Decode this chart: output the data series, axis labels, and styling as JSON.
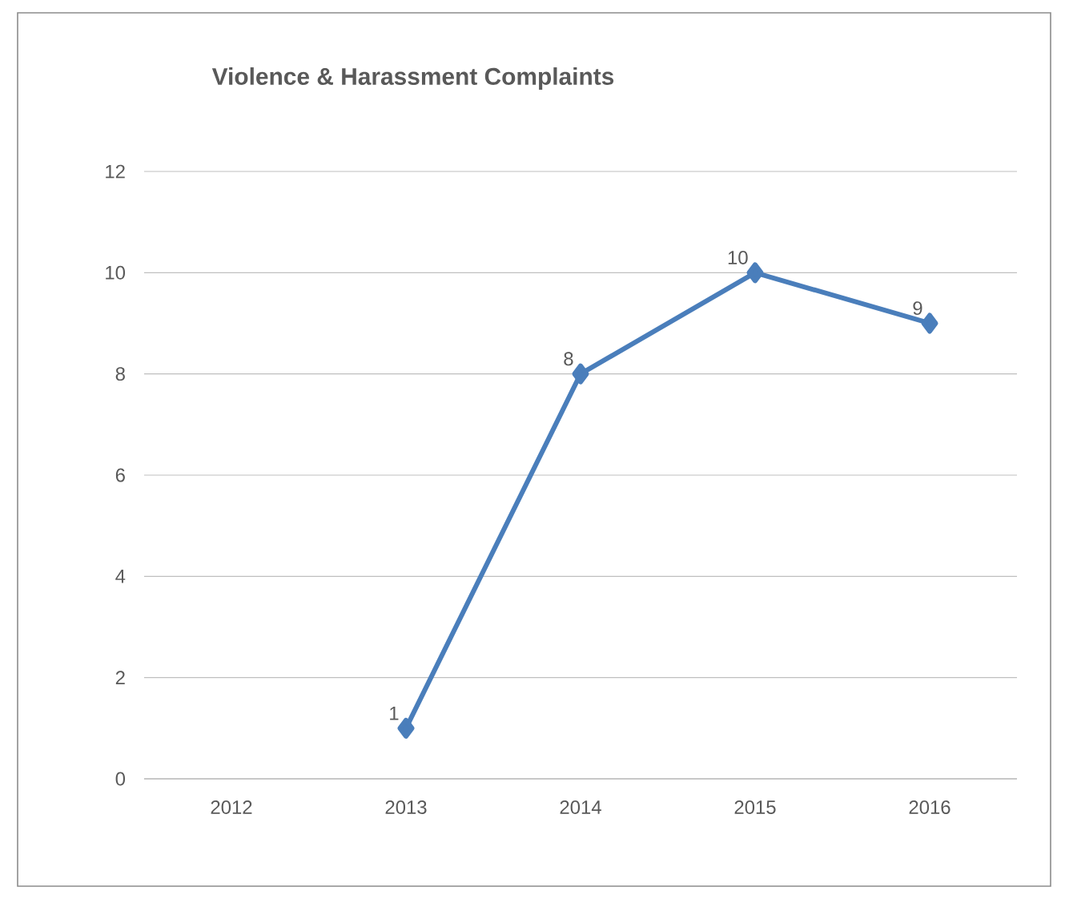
{
  "chart_data": {
    "type": "line",
    "title": "Violence & Harassment Complaints",
    "categories": [
      "2012",
      "2013",
      "2014",
      "2015",
      "2016"
    ],
    "values": [
      null,
      1,
      8,
      10,
      9
    ],
    "color": "#4a7ebb",
    "ylim": [
      0,
      12
    ],
    "yticks": [
      0,
      2,
      4,
      6,
      8,
      10,
      12
    ],
    "grid": "y",
    "marker": "diamond",
    "line_style": "solid",
    "data_labels": true
  }
}
